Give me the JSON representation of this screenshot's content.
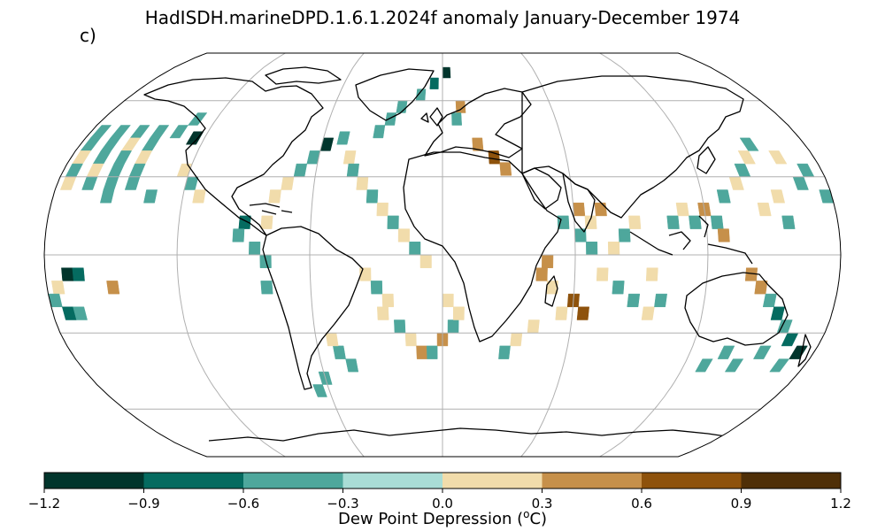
{
  "title": "HadISDH.marineDPD.1.6.1.2024f anomaly January-December 1974",
  "panel_label": "c)",
  "colorbar": {
    "label_prefix": "Dew Point Depression (",
    "label_sup": "o",
    "label_suffix": "C)",
    "ticks": [
      "−1.2",
      "−0.9",
      "−0.6",
      "−0.3",
      "0.0",
      "0.3",
      "0.6",
      "0.9",
      "1.2"
    ],
    "colors": [
      "#01352c",
      "#056b60",
      "#4ea79c",
      "#a9ddd6",
      "#f1dcab",
      "#c6904a",
      "#8e520c",
      "#4f2f07"
    ]
  },
  "chart_data": {
    "type": "heatmap",
    "projection": "robinson",
    "variable": "Dew Point Depression anomaly",
    "units": "°C",
    "period": "January-December 1974",
    "vmin": -1.2,
    "vmax": 1.2,
    "grid": true,
    "graticule_lon": [
      -180,
      -120,
      -60,
      0,
      60,
      120,
      180
    ],
    "graticule_lat": [
      -60,
      -30,
      0,
      30,
      60
    ],
    "cells_lonlat_value": [
      [
        -175,
        47.5,
        -0.4
      ],
      [
        -165,
        47.5,
        -0.4
      ],
      [
        -155,
        47.5,
        -0.45
      ],
      [
        -145,
        47.5,
        -0.4
      ],
      [
        -175,
        42.5,
        -0.4
      ],
      [
        -165,
        42.5,
        -0.35
      ],
      [
        -155,
        42.5,
        0.1
      ],
      [
        -145,
        42.5,
        -0.4
      ],
      [
        -175,
        37.5,
        0.1
      ],
      [
        -165,
        37.5,
        -0.4
      ],
      [
        -155,
        37.5,
        -0.45
      ],
      [
        -145,
        37.5,
        0.15
      ],
      [
        -175,
        32.5,
        -0.4
      ],
      [
        -165,
        32.5,
        0.15
      ],
      [
        -155,
        32.5,
        -0.4
      ],
      [
        -145,
        32.5,
        -0.4
      ],
      [
        -175,
        27.5,
        0.1
      ],
      [
        -165,
        27.5,
        -0.4
      ],
      [
        -155,
        27.5,
        -0.6
      ],
      [
        -145,
        27.5,
        -0.4
      ],
      [
        -155,
        22.5,
        -0.4
      ],
      [
        -135,
        22.5,
        -0.35
      ],
      [
        -130,
        52.5,
        -0.4
      ],
      [
        -135,
        47.5,
        -0.4
      ],
      [
        -125,
        45,
        -0.9
      ],
      [
        -122.5,
        32.5,
        0.1
      ],
      [
        -117.5,
        27.5,
        -0.4
      ],
      [
        -112.5,
        22.5,
        0.1
      ],
      [
        -90,
        12.5,
        -0.7
      ],
      [
        -92.5,
        7.5,
        -0.5
      ],
      [
        -80,
        12.5,
        0.2
      ],
      [
        -85,
        2.5,
        -0.5
      ],
      [
        -80,
        -2.5,
        -0.6
      ],
      [
        -80,
        -12.5,
        -0.4
      ],
      [
        -77.5,
        22.5,
        0.2
      ],
      [
        -72.5,
        27.5,
        0.2
      ],
      [
        -67.5,
        32.5,
        -0.4
      ],
      [
        -62.5,
        37.5,
        -0.4
      ],
      [
        -57.5,
        42.5,
        -0.95
      ],
      [
        -50,
        45,
        -0.5
      ],
      [
        -45,
        37.5,
        0.2
      ],
      [
        -42.5,
        32.5,
        -0.35
      ],
      [
        -37.5,
        27.5,
        0.15
      ],
      [
        -32.5,
        22.5,
        -0.4
      ],
      [
        -27.5,
        17.5,
        0.2
      ],
      [
        -22.5,
        12.5,
        -0.35
      ],
      [
        -17.5,
        7.5,
        0.15
      ],
      [
        -12.5,
        2.5,
        -0.35
      ],
      [
        -7.5,
        -2.5,
        0.15
      ],
      [
        -32.5,
        47.5,
        -0.4
      ],
      [
        -27.5,
        52.5,
        -0.5
      ],
      [
        -22.5,
        57.5,
        -0.4
      ],
      [
        -12.5,
        62.5,
        -0.45
      ],
      [
        -5,
        67.5,
        -0.7
      ],
      [
        2.5,
        72.5,
        -0.9
      ],
      [
        10,
        57.5,
        0.3
      ],
      [
        7.5,
        52.5,
        -0.4
      ],
      [
        17.5,
        42.5,
        0.3
      ],
      [
        25,
        37.5,
        0.6
      ],
      [
        30,
        33,
        0.5
      ],
      [
        -35,
        -7.5,
        0.15
      ],
      [
        -30,
        -12.5,
        -0.4
      ],
      [
        -25,
        -17.5,
        0.1
      ],
      [
        -27.5,
        -22.5,
        0.2
      ],
      [
        -20,
        -27.5,
        -0.4
      ],
      [
        -15,
        -32.5,
        0.15
      ],
      [
        -10,
        -37.5,
        0.5
      ],
      [
        -5,
        -37.5,
        -0.4
      ],
      [
        0,
        -32.5,
        0.3
      ],
      [
        5,
        -27.5,
        -0.4
      ],
      [
        7.5,
        -22.5,
        0.15
      ],
      [
        2.5,
        -17.5,
        0.2
      ],
      [
        -45,
        -42.5,
        -0.5
      ],
      [
        -50,
        -37.5,
        -0.4
      ],
      [
        -52.5,
        -32.5,
        0.15
      ],
      [
        -60,
        -47.5,
        -0.6
      ],
      [
        -65,
        -52.5,
        -0.45
      ],
      [
        45,
        -7.5,
        0.5
      ],
      [
        47.5,
        -2.5,
        0.3
      ],
      [
        50,
        -12.5,
        0.15
      ],
      [
        55,
        -22.5,
        0.15
      ],
      [
        60,
        -17.5,
        0.6
      ],
      [
        65,
        -22.5,
        0.75
      ],
      [
        42.5,
        -27.5,
        0.2
      ],
      [
        35,
        -32.5,
        0.15
      ],
      [
        30,
        -37.5,
        -0.4
      ],
      [
        55,
        12.5,
        -0.35
      ],
      [
        62.5,
        17.5,
        0.3
      ],
      [
        67.5,
        12.5,
        0.15
      ],
      [
        72.5,
        17.5,
        0.5
      ],
      [
        62.5,
        7.5,
        -0.4
      ],
      [
        67.5,
        2.5,
        -0.5
      ],
      [
        77.5,
        2.5,
        0.15
      ],
      [
        82.5,
        7.5,
        -0.35
      ],
      [
        87.5,
        12.5,
        0.2
      ],
      [
        72.5,
        -7.5,
        0.15
      ],
      [
        80,
        -12.5,
        -0.4
      ],
      [
        87.5,
        -17.5,
        -0.35
      ],
      [
        95,
        -22.5,
        0.15
      ],
      [
        100,
        -17.5,
        -0.4
      ],
      [
        95,
        -7.5,
        0.1
      ],
      [
        105,
        12.5,
        -0.4
      ],
      [
        110,
        17.5,
        0.15
      ],
      [
        115,
        12.5,
        -0.5
      ],
      [
        120,
        17.5,
        0.5
      ],
      [
        125,
        12.5,
        -0.6
      ],
      [
        127.5,
        7.5,
        0.3
      ],
      [
        130,
        22.5,
        -0.4
      ],
      [
        137.5,
        27.5,
        0.15
      ],
      [
        142.5,
        32.5,
        -0.4
      ],
      [
        147.5,
        37.5,
        0.2
      ],
      [
        152.5,
        42.5,
        -0.35
      ],
      [
        162.5,
        37.5,
        0.15
      ],
      [
        172.5,
        32.5,
        -0.4
      ],
      [
        167.5,
        27.5,
        -0.5
      ],
      [
        177.5,
        22.5,
        -0.4
      ],
      [
        155,
        22.5,
        0.2
      ],
      [
        147.5,
        17.5,
        0.15
      ],
      [
        157.5,
        12.5,
        -0.45
      ],
      [
        140,
        -7.5,
        0.5
      ],
      [
        145,
        -12.5,
        0.3
      ],
      [
        150,
        -17.5,
        -0.5
      ],
      [
        155,
        -22.5,
        -0.65
      ],
      [
        160,
        -27.5,
        -0.4
      ],
      [
        165,
        -32.5,
        -0.7
      ],
      [
        172.5,
        -37.5,
        -1.0
      ],
      [
        167.5,
        -42.5,
        -0.55
      ],
      [
        155,
        -37.5,
        -0.5
      ],
      [
        145,
        -42.5,
        -0.4
      ],
      [
        137.5,
        -37.5,
        -0.45
      ],
      [
        130,
        -42.5,
        -0.4
      ],
      [
        -170,
        -7.5,
        -0.95
      ],
      [
        -165,
        -7.5,
        -0.7
      ],
      [
        -175,
        -12.5,
        0.1
      ],
      [
        -177.5,
        -17.5,
        -0.6
      ],
      [
        -172.5,
        -22.5,
        -0.7
      ],
      [
        -167.5,
        -22.5,
        -0.5
      ],
      [
        -150,
        -12.5,
        0.5
      ]
    ]
  }
}
